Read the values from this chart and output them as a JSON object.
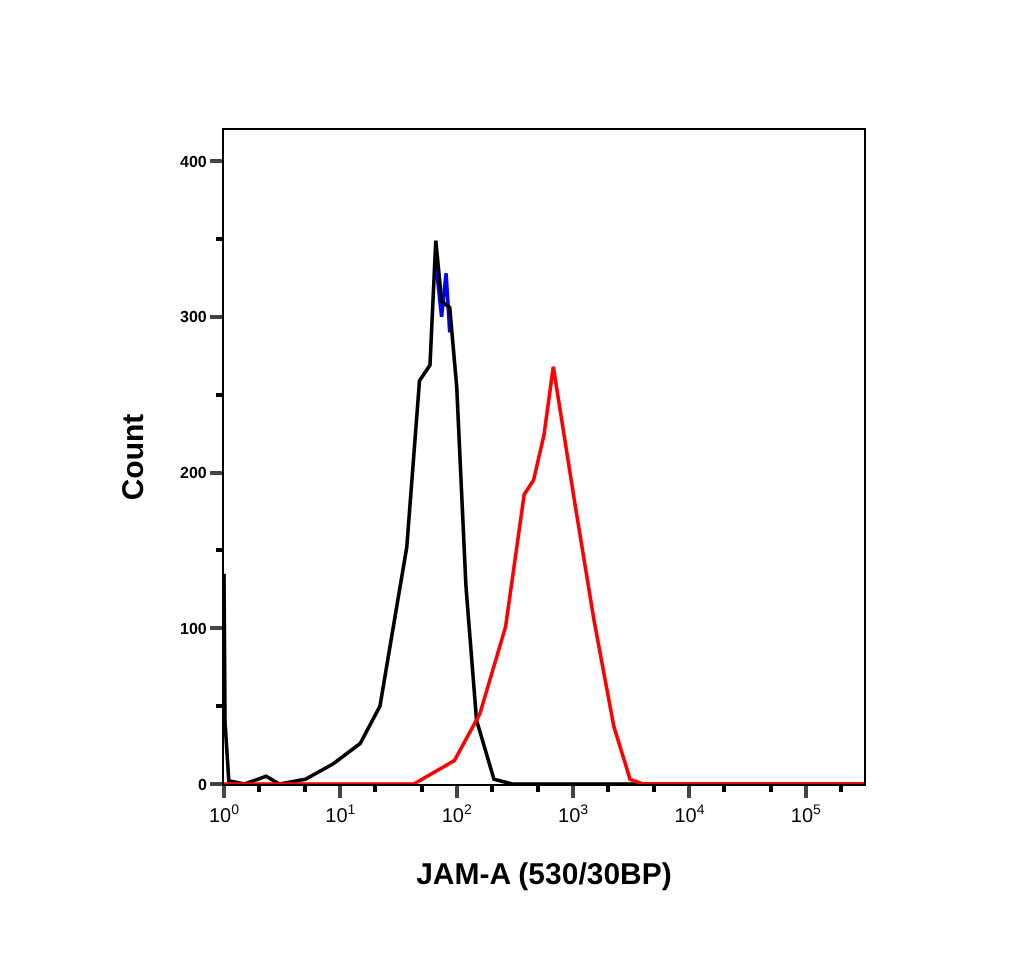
{
  "chart_data": {
    "type": "line",
    "xlabel": "JAM-A (530/30BP)",
    "ylabel": "Count",
    "log": "x",
    "xlim": [
      1,
      316228
    ],
    "ylim": [
      0,
      420
    ],
    "xticks": [
      {
        "value": 1,
        "label": "10$^{0}$"
      },
      {
        "value": 10,
        "label": "10$^{1}$"
      },
      {
        "value": 100,
        "label": "10$^{2}$"
      },
      {
        "value": 1000,
        "label": "10$^{3}$"
      },
      {
        "value": 10000,
        "label": "10$^{4}$"
      },
      {
        "value": 100000,
        "label": "10$^{5}$"
      }
    ],
    "yticks": [
      0,
      100,
      200,
      300,
      400
    ],
    "marker": "none",
    "line_style": "solid",
    "series": [
      {
        "color": "#0000ff",
        "x": [
          66.1,
          74.1,
          81,
          87.1
        ],
        "values": [
          335,
          300,
          328,
          290
        ]
      },
      {
        "color": "#000000",
        "x": [
          1,
          1.02,
          1.1,
          1.5,
          2.3,
          3,
          5,
          8.7,
          14.8,
          21.9,
          30.2,
          37.2,
          47.9,
          58.9,
          66.1,
          74.1,
          87.1,
          100,
          120,
          148,
          209,
          300,
          1000,
          316228
        ],
        "values": [
          135,
          40,
          2,
          0,
          5,
          0,
          3,
          13,
          26,
          50,
          112,
          152,
          259,
          269,
          349,
          310,
          306,
          255,
          127,
          41,
          3,
          0,
          0,
          0
        ]
      },
      {
        "color": "#ff0000",
        "x": [
          1,
          10,
          42.7,
          95.5,
          158,
          263,
          380,
          457,
          562,
          676,
          1047,
          1514,
          2239,
          3090,
          3981,
          316228
        ],
        "values": [
          0,
          0,
          0,
          15,
          45,
          101,
          186,
          195,
          224,
          268,
          178,
          105,
          37,
          3,
          0,
          0
        ]
      }
    ]
  }
}
